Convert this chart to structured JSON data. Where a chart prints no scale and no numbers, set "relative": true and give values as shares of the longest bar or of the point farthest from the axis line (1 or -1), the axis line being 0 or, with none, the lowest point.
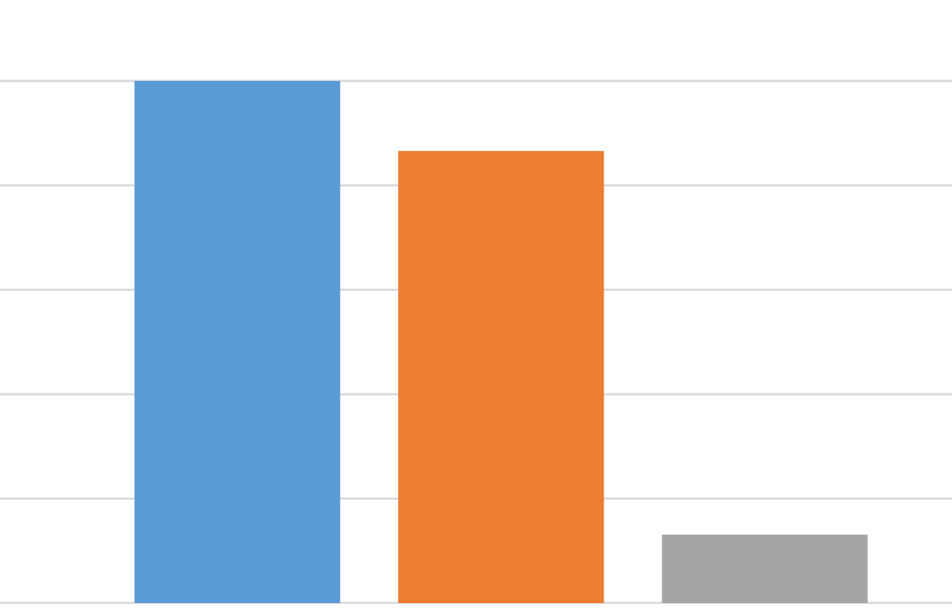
{
  "chart_data": {
    "type": "bar",
    "relative": true,
    "categories": [
      null,
      null,
      null
    ],
    "values": [
      1,
      0.866,
      0.131
    ],
    "colors": [
      "#5b9bd5",
      "#ed7d31",
      "#a5a5a5"
    ],
    "grid": "y"
  }
}
